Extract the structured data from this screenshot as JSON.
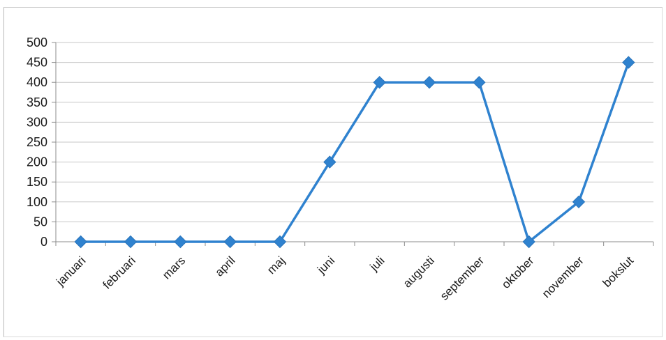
{
  "chart_data": {
    "type": "line",
    "categories": [
      "januari",
      "februari",
      "mars",
      "april",
      "maj",
      "juni",
      "juli",
      "augusti",
      "september",
      "oktober",
      "november",
      "bokslut"
    ],
    "series": [
      {
        "values": [
          0,
          0,
          0,
          0,
          0,
          200,
          400,
          400,
          400,
          0,
          100,
          450
        ]
      }
    ],
    "title": "",
    "xlabel": "",
    "ylabel": "",
    "ylim": [
      0,
      500
    ],
    "yticks": [
      "0",
      "50",
      "100",
      "150",
      "200",
      "250",
      "300",
      "350",
      "400",
      "450",
      "500"
    ],
    "grid": true,
    "legend": "none",
    "marker": "diamond",
    "line_color": "#2f82cf"
  }
}
